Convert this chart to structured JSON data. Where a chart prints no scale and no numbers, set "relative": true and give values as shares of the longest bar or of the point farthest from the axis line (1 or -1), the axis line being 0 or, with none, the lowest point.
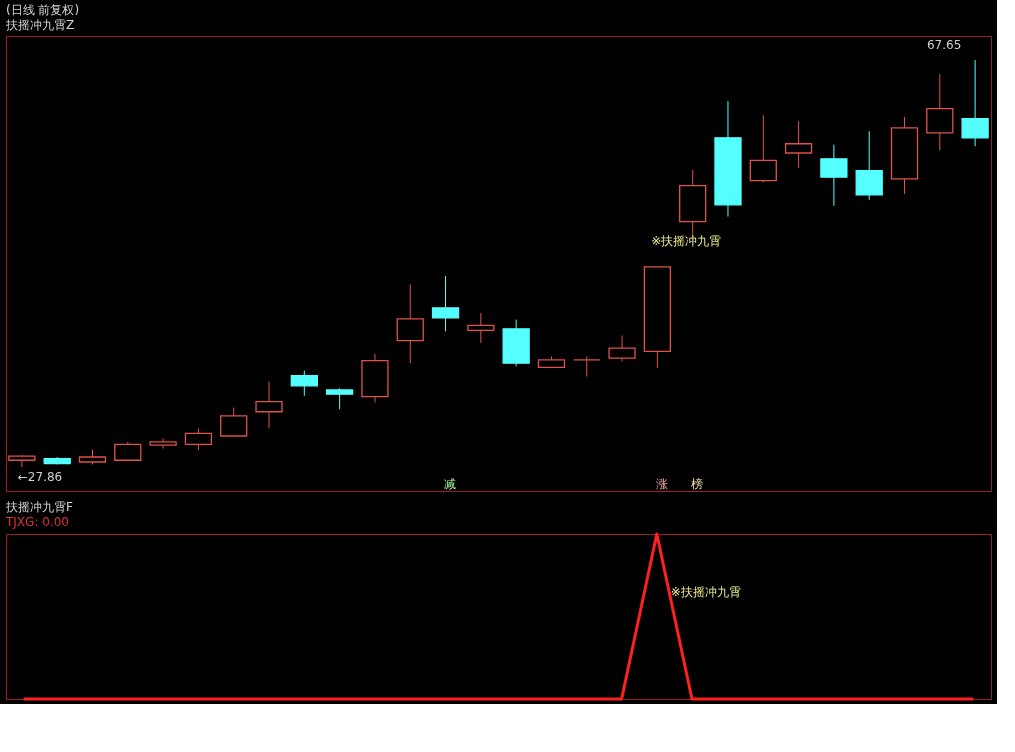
{
  "chart_data": [
    {
      "type": "candlestick",
      "title": "(日线 前复权)",
      "subtitle": "扶摇冲九霄Z",
      "categories": [
        null,
        null,
        null,
        null,
        null,
        null,
        null,
        null,
        null,
        null,
        null,
        null,
        null,
        null,
        null,
        null,
        null,
        null,
        null,
        null,
        null,
        null,
        null,
        null,
        null,
        null,
        null,
        null
      ],
      "ohlc": [
        [
          28.52,
          29.01,
          27.86,
          28.93
        ],
        [
          28.68,
          28.84,
          28.11,
          28.19
        ],
        [
          28.35,
          29.58,
          28.11,
          28.84
        ],
        [
          28.52,
          30.32,
          28.52,
          30.07
        ],
        [
          29.99,
          30.65,
          29.66,
          30.32
        ],
        [
          30.07,
          31.63,
          29.5,
          31.14
        ],
        [
          30.89,
          33.67,
          30.89,
          32.86
        ],
        [
          33.26,
          36.21,
          31.63,
          34.25
        ],
        [
          36.79,
          37.28,
          34.82,
          35.8
        ],
        [
          35.39,
          35.56,
          33.51,
          34.98
        ],
        [
          34.74,
          38.91,
          34.17,
          38.26
        ],
        [
          40.22,
          45.71,
          38.01,
          42.35
        ],
        [
          43.42,
          46.53,
          41.12,
          42.43
        ],
        [
          41.21,
          42.93,
          39.98,
          41.7
        ],
        [
          41.37,
          42.27,
          37.69,
          38.01
        ],
        [
          37.6,
          38.67,
          37.52,
          38.34
        ],
        [
          38.34,
          38.67,
          36.7,
          38.34
        ],
        [
          38.5,
          40.72,
          38.18,
          39.49
        ],
        [
          39.16,
          47.43,
          37.52,
          47.43
        ],
        [
          51.85,
          56.92,
          50.29,
          55.37
        ],
        [
          60.04,
          63.64,
          52.34,
          53.49
        ],
        [
          55.86,
          62.25,
          55.7,
          57.83
        ],
        [
          58.56,
          61.67,
          57.09,
          59.46
        ],
        [
          57.99,
          59.38,
          53.4,
          56.19
        ],
        [
          56.84,
          60.69,
          53.98,
          54.47
        ],
        [
          56.02,
          62.08,
          54.55,
          61.02
        ],
        [
          60.53,
          66.26,
          58.81,
          62.9
        ],
        [
          61.92,
          67.65,
          59.22,
          60.04
        ]
      ],
      "colors": [
        "#e0524a",
        "#54ffff",
        "#e0524a",
        "#e0524a",
        "#e0524a",
        "#e0524a",
        "#e0524a",
        "#e0524a",
        "#54ffff",
        "#54ffff",
        "#e0524a",
        "#e0524a",
        "#54ffff",
        "#e0524a",
        "#54ffff",
        "#e0524a",
        "#e0524a",
        "#e0524a",
        "#e0524a",
        "#e0524a",
        "#54ffff",
        "#e0524a",
        "#e0524a",
        "#54ffff",
        "#54ffff",
        "#e0524a",
        "#e0524a",
        "#54ffff"
      ],
      "annotations": [
        "67.65",
        "←27.86",
        "※扶摇冲九霄",
        "减",
        "涨",
        "榜"
      ],
      "tick_labels": false
    },
    {
      "type": "line",
      "title": "扶摇冲九霄F",
      "subtitle": "TJXG: 0.00",
      "relative": true,
      "categories": [
        null,
        null,
        null,
        null,
        null,
        null,
        null,
        null,
        null,
        null,
        null,
        null,
        null,
        null,
        null,
        null,
        null,
        null,
        null,
        null,
        null,
        null,
        null,
        null,
        null,
        null,
        null,
        null
      ],
      "series": [
        {
          "color": "#ff2020",
          "values": [
            0,
            0,
            0,
            0,
            0,
            0,
            0,
            0,
            0,
            0,
            0,
            0,
            0,
            0,
            0,
            0,
            0,
            0,
            1,
            0,
            0,
            0,
            0,
            0,
            0,
            0,
            0,
            0
          ]
        }
      ],
      "annotations": [
        "※扶摇冲九霄"
      ],
      "tick_labels": false
    }
  ]
}
